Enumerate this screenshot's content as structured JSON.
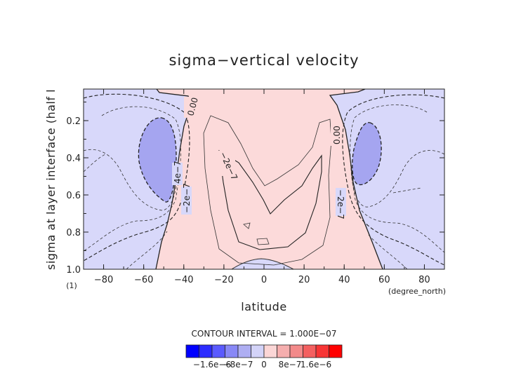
{
  "chart_data": {
    "type": "contour",
    "title": "sigma−vertical velocity",
    "xlabel": "latitude",
    "x_unit": "(degree_north)",
    "ylabel": "sigma at layer interface (half l",
    "y_unit": "(1)",
    "xlim": [
      -90,
      90
    ],
    "ylim": [
      1.0,
      0.03
    ],
    "x_ticks": [
      -80,
      -60,
      -40,
      -20,
      0,
      20,
      40,
      60,
      80
    ],
    "x_tick_labels": [
      "−80",
      "−60",
      "−40",
      "−20",
      "0",
      "20",
      "40",
      "60",
      "80"
    ],
    "y_ticks": [
      0.2,
      0.4,
      0.6,
      0.8,
      1.0
    ],
    "y_tick_labels": [
      "0.2",
      "0.4",
      "0.6",
      "0.8",
      "1.0"
    ],
    "contour_interval_text": "CONTOUR INTERVAL = 1.000E−07",
    "contour_labels": [
      "0.00",
      "0.00",
      "−2e−7",
      "4e−7",
      "−2e−7",
      "−2e−7",
      "−2e−7"
    ],
    "regions": [
      {
        "sign": "positive",
        "desc": "central tropical upwelling",
        "lat_range": [
          -33,
          30
        ],
        "sigma_range": [
          0.03,
          1.0
        ]
      },
      {
        "sign": "negative",
        "lat_center": -52,
        "sigma_center": 0.4,
        "min_level": "-4e-7"
      },
      {
        "sign": "negative",
        "lat_center": 52,
        "sigma_center": 0.4,
        "min_level": "-4e-7"
      },
      {
        "sign": "negative",
        "lat_center": 0,
        "sigma_center": 0.98
      }
    ],
    "colorbar": {
      "tick_labels": [
        "−1.6e−6",
        "−8e−7",
        "0",
        "8e−7",
        "1.6e−6"
      ],
      "colors": [
        "#0000ff",
        "#2c2cff",
        "#5a5aff",
        "#8888f6",
        "#aeaef2",
        "#d3d3f8",
        "#fbd6d6",
        "#f5aeae",
        "#f38a8a",
        "#f46060",
        "#f73535",
        "#ff0000"
      ]
    },
    "colors": {
      "negative_fill": "#d8d8fa",
      "negative_strong": "#a5a5f0",
      "positive_fill": "#fcdada",
      "background": "#ffffff"
    },
    "grid": false
  }
}
